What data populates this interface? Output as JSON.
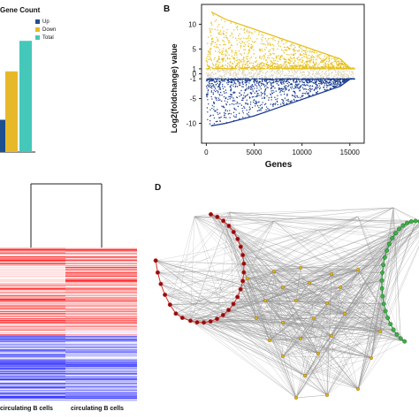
{
  "figure": {
    "colors": {
      "up": "#1c4f8f",
      "down": "#e7b92a",
      "total": "#45c8b9",
      "scatter_up": "#e8c020",
      "scatter_down": "#1d3f8f",
      "neutral": "#d8d0b0"
    }
  },
  "panel_a": {
    "title": "Gene Count",
    "legend": [
      "Up",
      "Down",
      "Total"
    ]
  },
  "panel_b": {
    "letter": "B",
    "ylabel": "Log2(foldchange) value",
    "xlabel": "Genes",
    "yticks": [
      "10",
      "5",
      "1",
      "0",
      "-1",
      "-5",
      "-10"
    ],
    "xticks": [
      "0",
      "5000",
      "10000",
      "15000"
    ]
  },
  "panel_c": {
    "labels": [
      "circulating B cells",
      "circulating B cells"
    ]
  },
  "panel_d": {
    "letter": "D"
  },
  "chart_data": [
    {
      "type": "bar",
      "title": "Gene Count",
      "categories": [
        "Up",
        "Down",
        "Total"
      ],
      "values": [
        18,
        45,
        62
      ],
      "ylim": [
        0,
        70
      ],
      "legend_position": "top-right"
    },
    {
      "type": "scatter",
      "xlabel": "Genes",
      "ylabel": "Log2(foldchange) value",
      "xlim": [
        -500,
        16500
      ],
      "ylim": [
        -14,
        14
      ],
      "x_ticks": [
        0,
        5000,
        10000,
        15000
      ],
      "y_ticks": [
        10,
        5,
        1,
        0,
        -1,
        -5,
        -10
      ],
      "series": [
        {
          "name": "Up",
          "envelope_x": [
            500,
            2000,
            5000,
            8000,
            11000,
            14000,
            15000
          ],
          "envelope_y": [
            12.5,
            11,
            9,
            7,
            5,
            3,
            1.2
          ]
        },
        {
          "name": "Down",
          "envelope_x": [
            500,
            2000,
            5000,
            8000,
            11000,
            14000,
            15000
          ],
          "envelope_y": [
            -10.5,
            -10,
            -8.5,
            -6.5,
            -4.5,
            -2.5,
            -1.1
          ]
        }
      ]
    }
  ]
}
